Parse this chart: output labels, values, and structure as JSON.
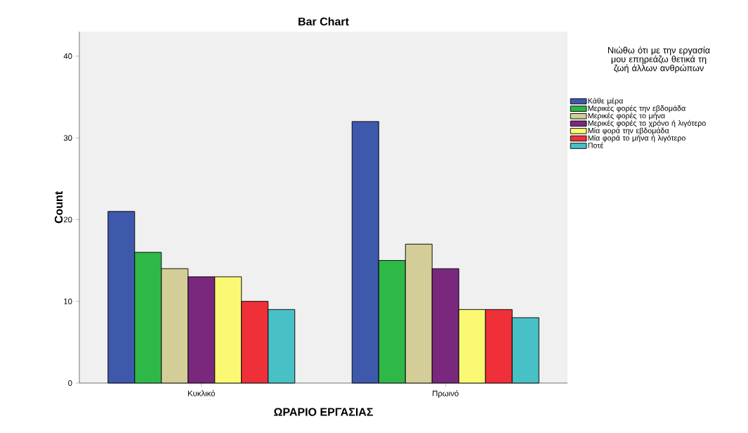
{
  "chart_data": {
    "type": "bar",
    "title": "Bar Chart",
    "xlabel": "ΩΡΑΡΙΟ ΕΡΓΑΣΙΑΣ",
    "ylabel": "Count",
    "legend_title": "Νιώθω ότι με την εργασία μου επηρεάζω θετικά τη ζωή άλλων ανθρώπων",
    "categories": [
      "Κυκλικό",
      "Πρωινό"
    ],
    "series": [
      {
        "name": "Κάθε μέρα",
        "color": "#3e58ac",
        "values": [
          21,
          32
        ]
      },
      {
        "name": "Μερικές φορές την εβδομάδα",
        "color": "#2eb848",
        "values": [
          16,
          15
        ]
      },
      {
        "name": "Μερικές φορές το μήνα",
        "color": "#d3ce97",
        "values": [
          14,
          17
        ]
      },
      {
        "name": "Μερικές φορές το χρόνο ή λιγότερο",
        "color": "#79287e",
        "values": [
          13,
          14
        ]
      },
      {
        "name": "Μία φορά την εβδομάδα",
        "color": "#fbf873",
        "values": [
          13,
          9
        ]
      },
      {
        "name": "Μία φορά το μήνα ή λιγότερο",
        "color": "#ef3038",
        "values": [
          10,
          9
        ]
      },
      {
        "name": "Ποτέ",
        "color": "#48c1c6",
        "values": [
          9,
          8
        ]
      }
    ],
    "ylim": [
      0,
      43
    ],
    "yticks": [
      0,
      10,
      20,
      30,
      40
    ],
    "legend": "right"
  }
}
